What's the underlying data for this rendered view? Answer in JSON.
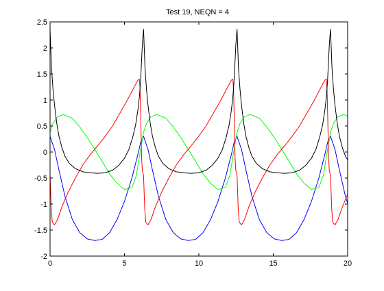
{
  "chart_data": {
    "type": "line",
    "title": "Test 19, NEQN = 4",
    "xlabel": "",
    "ylabel": "",
    "xlim": [
      0,
      20
    ],
    "ylim": [
      -2,
      2.5
    ],
    "xticks": [
      0,
      5,
      10,
      15,
      20
    ],
    "xtick_labels": [
      "0",
      "5",
      "10",
      "15",
      "20"
    ],
    "yticks": [
      -2,
      -1.5,
      -1,
      -0.5,
      0,
      0.5,
      1,
      1.5,
      2,
      2.5
    ],
    "ytick_labels": [
      "-2",
      "-1.5",
      "-1",
      "-0.5",
      "0",
      "0.5",
      "1",
      "1.5",
      "2",
      "2.5"
    ],
    "grid": false,
    "legend": "none",
    "period": 6.283,
    "series": [
      {
        "color": "#0000ff",
        "x": [
          0,
          0.3,
          0.6,
          1.0,
          1.5,
          2.0,
          2.5,
          3.0,
          3.5,
          4.0,
          4.5,
          5.0,
          5.5,
          5.9,
          6.1,
          6.283
        ],
        "y": [
          0.3,
          0.05,
          -0.35,
          -0.85,
          -1.3,
          -1.55,
          -1.67,
          -1.7,
          -1.68,
          -1.55,
          -1.3,
          -0.95,
          -0.5,
          -0.05,
          0.2,
          0.3
        ]
      },
      {
        "color": "#00ff00",
        "x": [
          0,
          0.2,
          0.5,
          0.9,
          1.5,
          2.0,
          2.5,
          3.0,
          3.5,
          4.0,
          4.5,
          5.0,
          5.5,
          5.8,
          6.0,
          6.283
        ],
        "y": [
          0.38,
          0.55,
          0.68,
          0.72,
          0.65,
          0.48,
          0.28,
          0.05,
          -0.18,
          -0.42,
          -0.6,
          -0.72,
          -0.68,
          -0.45,
          -0.1,
          0.38
        ]
      },
      {
        "color": "#ff0000",
        "x": [
          0,
          0.08,
          0.15,
          0.3,
          0.5,
          0.8,
          1.2,
          1.7,
          2.2,
          2.7,
          3.2,
          3.7,
          4.2,
          4.7,
          5.2,
          5.6,
          5.9,
          6.0,
          6.05,
          6.1,
          6.15,
          6.2,
          6.283
        ],
        "y": [
          -0.45,
          -1.1,
          -1.35,
          -1.4,
          -1.3,
          -1.05,
          -0.78,
          -0.5,
          -0.25,
          -0.05,
          0.12,
          0.3,
          0.5,
          0.75,
          1.0,
          1.22,
          1.38,
          1.4,
          1.2,
          0.6,
          -0.1,
          -0.35,
          -0.45
        ]
      },
      {
        "color": "#000000",
        "x": [
          0,
          0.1,
          0.2,
          0.3,
          0.45,
          0.6,
          0.8,
          1.0,
          1.3,
          1.7,
          2.2,
          2.7,
          3.2,
          3.7,
          4.2,
          4.6,
          5.0,
          5.3,
          5.55,
          5.75,
          5.9,
          6.0,
          6.08,
          6.14,
          6.2,
          6.25,
          6.283
        ],
        "y": [
          2.36,
          1.6,
          1.2,
          0.9,
          0.55,
          0.3,
          0.08,
          -0.08,
          -0.22,
          -0.32,
          -0.38,
          -0.4,
          -0.41,
          -0.4,
          -0.35,
          -0.26,
          -0.12,
          0.05,
          0.28,
          0.52,
          0.8,
          1.05,
          1.35,
          1.7,
          2.05,
          2.25,
          2.36
        ]
      }
    ]
  }
}
